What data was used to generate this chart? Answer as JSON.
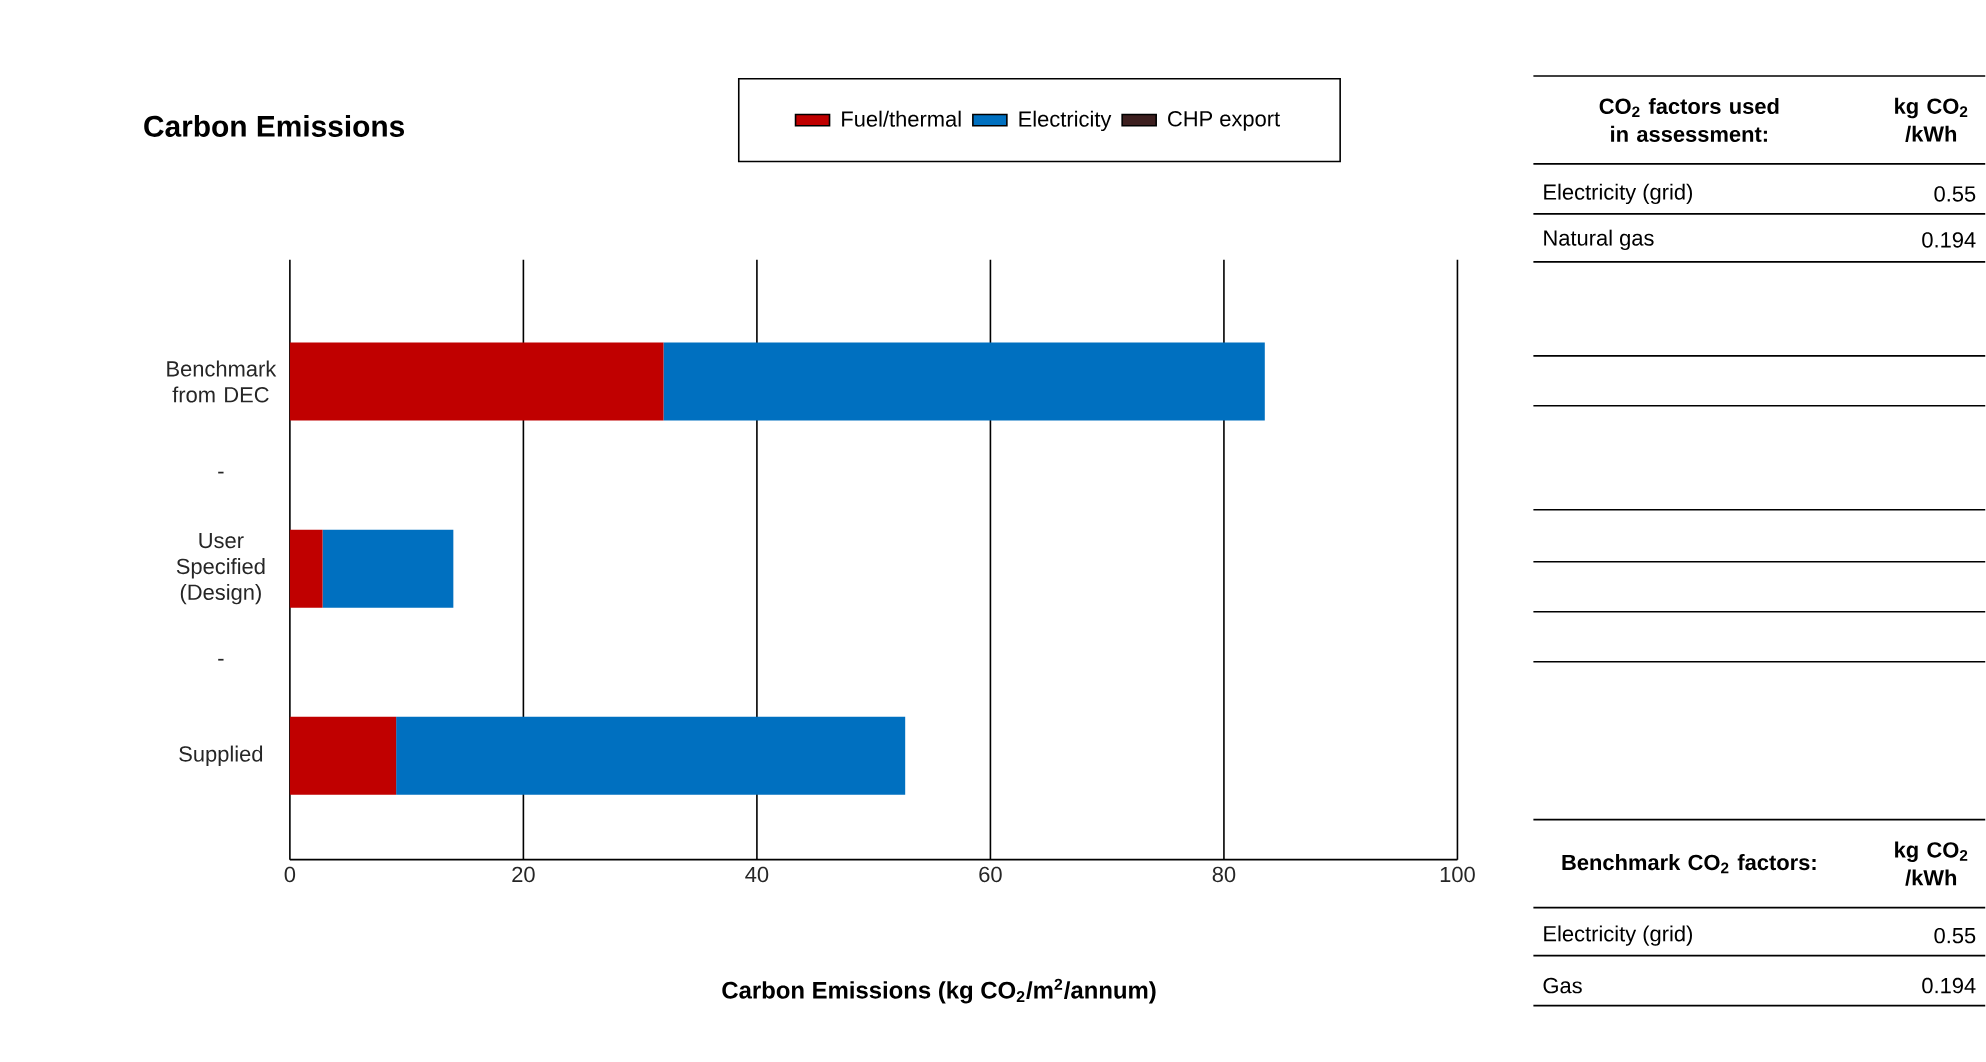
{
  "chart_data": [
    {
      "type": "bar",
      "orientation": "horizontal",
      "stacked": true,
      "title": "Carbon Emissions",
      "xlabel": "Carbon Emissions (kg CO$_{2}$/m$^{2}$/annum)",
      "categories": [
        "Benchmark from DEC",
        "-",
        "User Specified (Design)",
        "-",
        "Supplied"
      ],
      "series": [
        {
          "name": "Fuel/thermal",
          "color": "#c00000",
          "values": [
            32,
            null,
            2.8,
            null,
            9.1
          ]
        },
        {
          "name": "Electricity",
          "color": "#0070c0",
          "values": [
            51.5,
            null,
            11.2,
            null,
            43.6
          ]
        },
        {
          "name": "CHP export",
          "color": "#3d1f1f",
          "values": [
            null,
            null,
            null,
            null,
            null
          ]
        }
      ],
      "xlim": [
        0,
        100
      ],
      "xticks": [
        0,
        20,
        40,
        60,
        80,
        100
      ],
      "grid": "x",
      "legend": "top"
    },
    {
      "type": "other",
      "annotations": [
        "CO$_{2}$ factors used in assessment:",
        "kg CO$_{2}$ /kWh",
        "Electricity (grid)",
        "0.55",
        "Natural gas",
        "0.194",
        "Benchmark CO$_{2}$ factors:",
        "kg CO$_{2}$ /kWh",
        "Electricity (grid)",
        "0.55",
        "Gas",
        "0.194"
      ]
    }
  ]
}
